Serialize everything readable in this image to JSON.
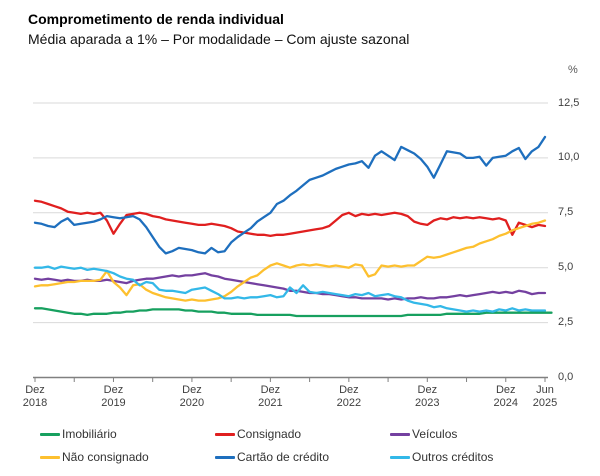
{
  "header": {
    "title": "Comprometimento de renda individual",
    "subtitle": "Média aparada a 1% – Por modalidade – Com ajuste sazonal"
  },
  "chart_data": {
    "type": "line",
    "title": "Comprometimento de renda individual",
    "subtitle": "Média aparada a 1% – Por modalidade – Com ajuste sazonal",
    "unit_label": "%",
    "x_start": "Dez 2018",
    "x_end": "Jun 2025",
    "months": 79,
    "x_frequency": "monthly",
    "ylim": [
      0,
      12.5
    ],
    "grid": true,
    "legend_position": "bottom",
    "colors": {
      "grid": "#d9d9d9",
      "axis": "#808080",
      "tick_text": "#3f3f3f"
    },
    "y_ticks": [
      {
        "value": 0,
        "label": "0,0"
      },
      {
        "value": 2.5,
        "label": "2,5"
      },
      {
        "value": 5,
        "label": "5,0"
      },
      {
        "value": 7.5,
        "label": "7,5"
      },
      {
        "value": 10,
        "label": "10,0"
      },
      {
        "value": 12.5,
        "label": "12,5"
      }
    ],
    "x_ticks": [
      {
        "month": 0,
        "line1": "Dez",
        "line2": "2018"
      },
      {
        "month": 12,
        "line1": "Dez",
        "line2": "2019"
      },
      {
        "month": 24,
        "line1": "Dez",
        "line2": "2020"
      },
      {
        "month": 36,
        "line1": "Dez",
        "line2": "2021"
      },
      {
        "month": 48,
        "line1": "Dez",
        "line2": "2022"
      },
      {
        "month": 60,
        "line1": "Dez",
        "line2": "2023"
      },
      {
        "month": 72,
        "line1": "Dez",
        "line2": "2024"
      },
      {
        "month": 78,
        "line1": "Jun",
        "line2": "2025"
      }
    ],
    "tick_mark_months": [
      0,
      6,
      12,
      18,
      24,
      30,
      36,
      42,
      48,
      54,
      60,
      66,
      72,
      78
    ],
    "series": [
      {
        "name": "Imobiliário",
        "slug": "imobiliario",
        "color": "#17a05f",
        "values": [
          3.15,
          3.15,
          3.1,
          3.05,
          3.0,
          2.95,
          2.9,
          2.9,
          2.85,
          2.9,
          2.9,
          2.9,
          2.95,
          2.95,
          3.0,
          3.0,
          3.05,
          3.05,
          3.1,
          3.1,
          3.1,
          3.1,
          3.1,
          3.05,
          3.05,
          3.0,
          3.0,
          3.0,
          2.95,
          2.95,
          2.9,
          2.9,
          2.9,
          2.9,
          2.85,
          2.85,
          2.85,
          2.85,
          2.85,
          2.85,
          2.8,
          2.8,
          2.8,
          2.8,
          2.8,
          2.8,
          2.8,
          2.8,
          2.8,
          2.8,
          2.8,
          2.8,
          2.8,
          2.8,
          2.8,
          2.8,
          2.8,
          2.85,
          2.85,
          2.85,
          2.85,
          2.85,
          2.85,
          2.9,
          2.9,
          2.9,
          2.9,
          2.9,
          2.9,
          2.95,
          2.95,
          2.95,
          2.95,
          2.95,
          2.95,
          2.95,
          2.95,
          2.95,
          2.95,
          2.95
        ]
      },
      {
        "name": "Consignado",
        "slug": "consignado",
        "color": "#e01f1f",
        "values": [
          8.05,
          8.0,
          7.9,
          7.8,
          7.7,
          7.55,
          7.5,
          7.45,
          7.5,
          7.45,
          7.5,
          7.15,
          6.55,
          7.0,
          7.4,
          7.45,
          7.5,
          7.45,
          7.35,
          7.3,
          7.2,
          7.15,
          7.1,
          7.05,
          7.0,
          6.95,
          6.95,
          7.0,
          6.95,
          6.9,
          6.8,
          6.65,
          6.6,
          6.55,
          6.5,
          6.5,
          6.45,
          6.5,
          6.5,
          6.55,
          6.6,
          6.65,
          6.7,
          6.75,
          6.8,
          6.9,
          7.15,
          7.4,
          7.5,
          7.35,
          7.45,
          7.4,
          7.45,
          7.4,
          7.45,
          7.5,
          7.45,
          7.35,
          7.1,
          7.0,
          6.95,
          7.15,
          7.25,
          7.2,
          7.3,
          7.25,
          7.3,
          7.25,
          7.3,
          7.25,
          7.2,
          7.25,
          7.15,
          6.5,
          7.05,
          6.95,
          6.85,
          6.95,
          6.9
        ]
      },
      {
        "name": "Veículos",
        "slug": "veiculos",
        "color": "#7440a0",
        "values": [
          4.5,
          4.45,
          4.5,
          4.45,
          4.4,
          4.45,
          4.4,
          4.4,
          4.45,
          4.4,
          4.4,
          4.45,
          4.4,
          4.35,
          4.3,
          4.4,
          4.45,
          4.5,
          4.5,
          4.55,
          4.6,
          4.65,
          4.6,
          4.65,
          4.65,
          4.7,
          4.75,
          4.65,
          4.6,
          4.5,
          4.45,
          4.4,
          4.35,
          4.3,
          4.25,
          4.2,
          4.15,
          4.1,
          4.05,
          3.95,
          3.95,
          3.9,
          3.85,
          3.85,
          3.8,
          3.8,
          3.75,
          3.7,
          3.65,
          3.65,
          3.6,
          3.6,
          3.6,
          3.6,
          3.55,
          3.6,
          3.55,
          3.6,
          3.6,
          3.65,
          3.6,
          3.6,
          3.65,
          3.65,
          3.7,
          3.75,
          3.7,
          3.75,
          3.8,
          3.85,
          3.9,
          3.85,
          3.9,
          3.85,
          3.95,
          3.9,
          3.8,
          3.85,
          3.85
        ]
      },
      {
        "name": "Não consignado",
        "slug": "nao-consignado",
        "color": "#fdc02f",
        "values": [
          4.15,
          4.2,
          4.2,
          4.25,
          4.3,
          4.35,
          4.35,
          4.4,
          4.4,
          4.4,
          4.45,
          4.85,
          4.35,
          4.1,
          3.75,
          4.2,
          4.25,
          4.0,
          3.85,
          3.75,
          3.65,
          3.6,
          3.55,
          3.5,
          3.55,
          3.5,
          3.5,
          3.55,
          3.6,
          3.7,
          3.9,
          4.15,
          4.35,
          4.55,
          4.65,
          4.9,
          5.1,
          5.2,
          5.1,
          5.0,
          5.1,
          5.15,
          5.1,
          5.15,
          5.1,
          5.05,
          5.1,
          5.05,
          5.0,
          5.15,
          5.1,
          4.6,
          4.7,
          5.1,
          5.05,
          5.1,
          5.05,
          5.1,
          5.1,
          5.3,
          5.5,
          5.45,
          5.5,
          5.6,
          5.7,
          5.8,
          5.9,
          5.95,
          6.1,
          6.2,
          6.3,
          6.45,
          6.55,
          6.7,
          6.8,
          6.9,
          7.0,
          7.05,
          7.15
        ]
      },
      {
        "name": "Cartão de crédito",
        "slug": "cartao-de-credito",
        "color": "#1e6fbe",
        "values": [
          7.05,
          7.0,
          6.9,
          6.85,
          7.1,
          7.25,
          6.95,
          7.0,
          7.05,
          7.1,
          7.2,
          7.35,
          7.3,
          7.25,
          7.3,
          7.35,
          7.2,
          6.85,
          6.4,
          5.95,
          5.65,
          5.75,
          5.9,
          5.85,
          5.8,
          5.7,
          5.65,
          5.9,
          5.7,
          5.75,
          6.15,
          6.4,
          6.6,
          6.8,
          7.1,
          7.3,
          7.5,
          7.9,
          8.05,
          8.3,
          8.5,
          8.75,
          9.0,
          9.1,
          9.2,
          9.35,
          9.5,
          9.6,
          9.7,
          9.75,
          9.85,
          9.55,
          10.1,
          10.3,
          10.1,
          9.9,
          10.5,
          10.35,
          10.2,
          9.95,
          9.6,
          9.1,
          9.7,
          10.3,
          10.25,
          10.2,
          10.0,
          10.0,
          10.05,
          9.65,
          10.0,
          10.05,
          10.1,
          10.3,
          10.45,
          9.95,
          10.3,
          10.5,
          10.95
        ]
      },
      {
        "name": "Outros créditos",
        "slug": "outros-creditos",
        "color": "#33b8e8",
        "values": [
          5.0,
          5.0,
          5.05,
          4.95,
          5.05,
          5.0,
          4.95,
          5.0,
          4.9,
          4.95,
          4.9,
          4.85,
          4.75,
          4.6,
          4.5,
          4.45,
          4.2,
          4.35,
          4.3,
          4.0,
          3.95,
          3.95,
          3.9,
          3.85,
          4.0,
          4.05,
          4.1,
          3.95,
          3.8,
          3.6,
          3.6,
          3.65,
          3.6,
          3.65,
          3.65,
          3.7,
          3.75,
          3.65,
          3.7,
          4.1,
          3.85,
          4.2,
          3.9,
          3.85,
          3.9,
          3.85,
          3.8,
          3.75,
          3.7,
          3.8,
          3.75,
          3.85,
          3.7,
          3.75,
          3.8,
          3.7,
          3.65,
          3.5,
          3.4,
          3.35,
          3.3,
          3.2,
          3.25,
          3.15,
          3.1,
          3.05,
          3.0,
          3.05,
          3.0,
          3.05,
          3.0,
          3.1,
          3.05,
          3.15,
          3.05,
          3.1,
          3.05,
          3.05,
          3.05
        ]
      }
    ]
  }
}
